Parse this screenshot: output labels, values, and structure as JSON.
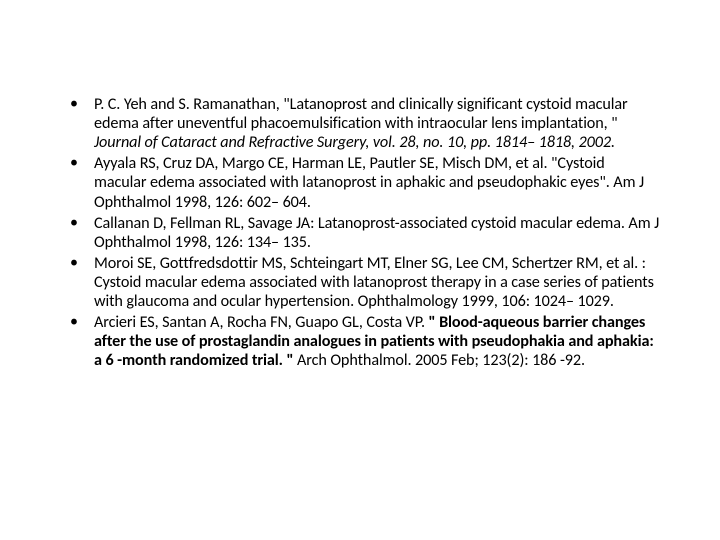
{
  "slide": {
    "background_color": "#ffffff",
    "text_color": "#000000",
    "font_family": "Calibri",
    "font_size_pt": 12,
    "bullet_char": "•",
    "references": [
      {
        "pre": "P. C. Yeh and S. Ramanathan, \"Latanoprost and clinically significant cystoid macular edema after uneventful phacoemulsification with intraocular lens implantation, \" ",
        "italic": "Journal of Cataract and Refractive Surgery, vol. 28, no. 10, pp. 1814– 1818, 2002.",
        "post": ""
      },
      {
        "pre": "Ayyala RS, Cruz DA, Margo CE, Harman LE, Pautler SE, Misch DM, et al. \"Cystoid macular edema associated with latanoprost in aphakic and pseudophakic eyes\". Am J Ophthalmol 1998, 126: 602– 604.",
        "italic": "",
        "post": ""
      },
      {
        "pre": "Callanan D, Fellman RL, Savage JA: Latanoprost-associated cystoid macular edema. Am J Ophthalmol 1998, 126: 134– 135.",
        "italic": "",
        "post": ""
      },
      {
        "pre": "Moroi SE, Gottfredsdottir MS, Schteingart MT, Elner SG, Lee CM, Schertzer RM, et al. : Cystoid macular edema associated with latanoprost therapy in a case series of patients with glaucoma and ocular hypertension. Ophthalmology 1999, 106: 1024– 1029.",
        "italic": "",
        "post": ""
      },
      {
        "pre": "Arcieri ES, Santan A, Rocha FN, Guapo GL, Costa VP. ",
        "italic": "",
        "bold": "\" Blood-aqueous barrier changes after the use of prostaglandin analogues in patients with pseudophakia and aphakia: a 6 -month randomized trial. \" ",
        "post": "Arch Ophthalmol. 2005 Feb; 123(2): 186 -92."
      }
    ]
  }
}
